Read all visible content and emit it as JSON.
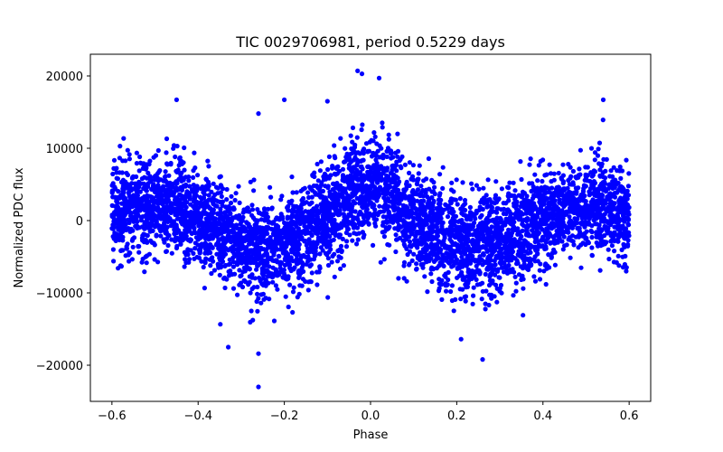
{
  "chart_data": {
    "type": "scatter",
    "title": "TIC 0029706981, period 0.5229 days",
    "xlabel": "Phase",
    "ylabel": "Normalized PDC flux",
    "xlim": [
      -0.65,
      0.65
    ],
    "ylim": [
      -25000,
      23000
    ],
    "xticks": [
      -0.6,
      -0.4,
      -0.2,
      0.0,
      0.2,
      0.4,
      0.6
    ],
    "xtick_labels": [
      "−0.6",
      "−0.4",
      "−0.2",
      "0.0",
      "0.2",
      "0.4",
      "0.6"
    ],
    "yticks": [
      -20000,
      -10000,
      0,
      10000,
      20000
    ],
    "ytick_labels": [
      "−20000",
      "−10000",
      "0",
      "10000",
      "20000"
    ],
    "marker_color": "#0000ff",
    "grid": false,
    "series": [
      {
        "name": "PDC flux",
        "x_range": [
          -0.6,
          0.6
        ],
        "n_points": 5200,
        "profile_x": [
          -0.6,
          -0.5,
          -0.45,
          -0.4,
          -0.3,
          -0.25,
          -0.2,
          -0.1,
          -0.05,
          0.0,
          0.05,
          0.1,
          0.2,
          0.25,
          0.3,
          0.4,
          0.45,
          0.5,
          0.6
        ],
        "profile_mean": [
          1000,
          2000,
          2000,
          0,
          -3000,
          -3500,
          -3000,
          0,
          4000,
          5000,
          4000,
          0,
          -3000,
          -3500,
          -2800,
          0,
          2000,
          2000,
          1000
        ],
        "scatter_sd": 3300,
        "notable_points": [
          {
            "x": -0.26,
            "y": -23000
          },
          {
            "x": 0.26,
            "y": -19200
          },
          {
            "x": -0.33,
            "y": -17500
          },
          {
            "x": -0.26,
            "y": -18400
          },
          {
            "x": -0.03,
            "y": 20700
          },
          {
            "x": -0.02,
            "y": 20300
          },
          {
            "x": 0.02,
            "y": 19700
          },
          {
            "x": -0.45,
            "y": 16700
          },
          {
            "x": 0.54,
            "y": 16700
          },
          {
            "x": -0.2,
            "y": 16700
          },
          {
            "x": -0.1,
            "y": 16500
          },
          {
            "x": -0.26,
            "y": 14800
          },
          {
            "x": 0.21,
            "y": -16400
          }
        ]
      }
    ]
  }
}
